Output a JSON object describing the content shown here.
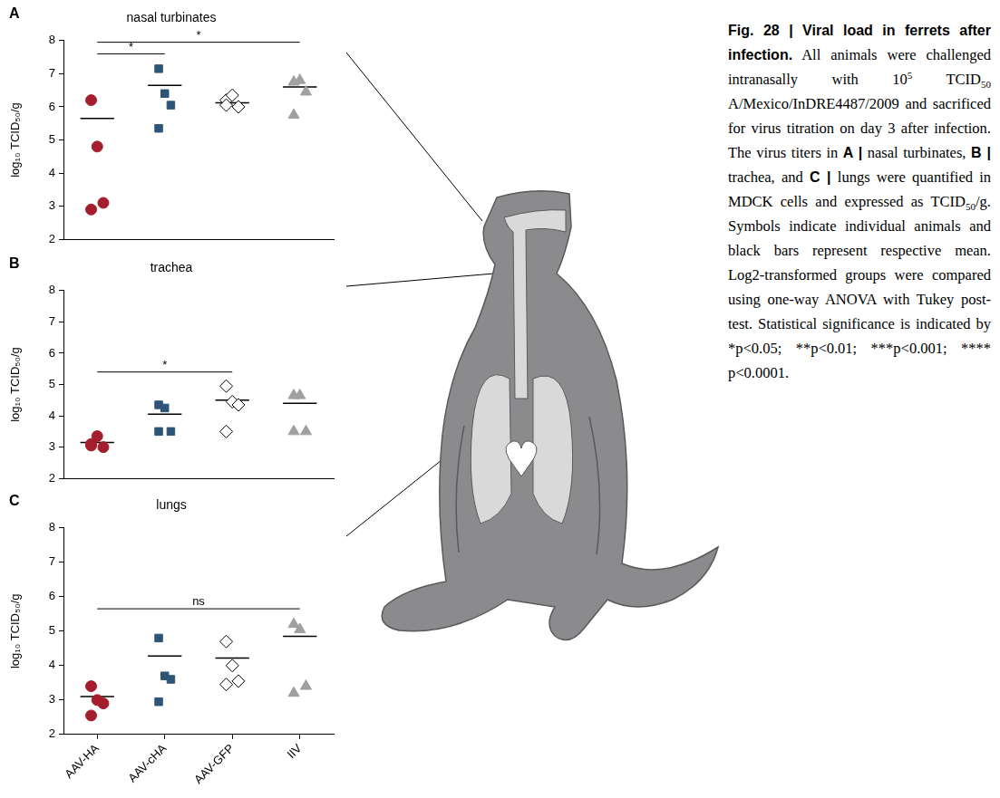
{
  "chart_data": [
    {
      "type": "scatter",
      "panel_label": "A",
      "title": "nasal turbinates",
      "y_label": "log₁₀ TCID₅₀/g",
      "categories": [
        "AAV-HA",
        "AAV-cHA",
        "AAV-GFP",
        "IIV"
      ],
      "series": [
        {
          "name": "AAV-HA",
          "color": "#a41e2d",
          "marker": "circle",
          "values": [
            6.2,
            4.8,
            3.1,
            2.9
          ],
          "mean": 5.65
        },
        {
          "name": "AAV-cHA",
          "color": "#2e5577",
          "marker": "square",
          "values": [
            7.15,
            6.4,
            6.05,
            5.35
          ],
          "mean": 6.65
        },
        {
          "name": "AAV-GFP",
          "color": "#ffffff",
          "marker": "diamond",
          "values": [
            6.2,
            6.35,
            6.0,
            6.05
          ],
          "mean": 6.12
        },
        {
          "name": "IIV",
          "color": "#a0a0a0",
          "marker": "triangle",
          "values": [
            6.75,
            6.8,
            6.45,
            5.75
          ],
          "mean": 6.6
        }
      ],
      "ylim": [
        2,
        8
      ],
      "yticks": [
        2,
        3,
        4,
        5,
        6,
        7,
        8
      ],
      "grid": false,
      "tick_labels": "y",
      "annotations": [
        {
          "from": "AAV-HA",
          "to": "AAV-cHA",
          "label": "*"
        },
        {
          "from": "AAV-HA",
          "to": "IIV",
          "label": "*"
        }
      ]
    },
    {
      "type": "scatter",
      "panel_label": "B",
      "title": "trachea",
      "y_label": "log₁₀ TCID₅₀/g",
      "categories": [
        "AAV-HA",
        "AAV-cHA",
        "AAV-GFP",
        "IIV"
      ],
      "series": [
        {
          "name": "AAV-HA",
          "color": "#a41e2d",
          "marker": "circle",
          "values": [
            3.1,
            3.35,
            3.0,
            3.05
          ],
          "mean": 3.15
        },
        {
          "name": "AAV-cHA",
          "color": "#2e5577",
          "marker": "square",
          "values": [
            4.35,
            4.25,
            3.5,
            3.5
          ],
          "mean": 4.05
        },
        {
          "name": "AAV-GFP",
          "color": "#ffffff",
          "marker": "diamond",
          "values": [
            4.95,
            4.45,
            4.35,
            3.5
          ],
          "mean": 4.5
        },
        {
          "name": "IIV",
          "color": "#a0a0a0",
          "marker": "triangle",
          "values": [
            4.65,
            4.65,
            3.5,
            3.5
          ],
          "mean": 4.4
        }
      ],
      "ylim": [
        2,
        8
      ],
      "yticks": [
        2,
        3,
        4,
        5,
        6,
        7,
        8
      ],
      "grid": false,
      "tick_labels": "y",
      "annotations": [
        {
          "from": "AAV-HA",
          "to": "AAV-GFP",
          "label": "*"
        }
      ]
    },
    {
      "type": "scatter",
      "panel_label": "C",
      "title": "lungs",
      "y_label": "log₁₀ TCID₅₀/g",
      "categories": [
        "AAV-HA",
        "AAV-cHA",
        "AAV-GFP",
        "IIV"
      ],
      "series": [
        {
          "name": "AAV-HA",
          "color": "#a41e2d",
          "marker": "circle",
          "values": [
            3.4,
            3.0,
            2.9,
            2.55
          ],
          "mean": 3.1
        },
        {
          "name": "AAV-cHA",
          "color": "#2e5577",
          "marker": "square",
          "values": [
            4.8,
            3.7,
            3.6,
            2.95
          ],
          "mean": 4.28
        },
        {
          "name": "AAV-GFP",
          "color": "#ffffff",
          "marker": "diamond",
          "values": [
            4.7,
            4.0,
            3.55,
            3.45
          ],
          "mean": 4.22
        },
        {
          "name": "IIV",
          "color": "#a0a0a0",
          "marker": "triangle",
          "values": [
            5.2,
            5.05,
            3.4,
            3.2
          ],
          "mean": 4.85
        }
      ],
      "ylim": [
        2,
        8
      ],
      "yticks": [
        2,
        3,
        4,
        5,
        6,
        7,
        8
      ],
      "grid": false,
      "annotations": [
        {
          "from": "AAV-HA",
          "to": "IIV",
          "label": "ns"
        }
      ]
    }
  ],
  "caption": [
    {
      "text": "Fig. 28 | Viral load in ferrets after infection.",
      "style": "bold"
    },
    {
      "text": " All animals were challenged intranasally with 10"
    },
    {
      "text": "5",
      "style": "sup"
    },
    {
      "text": " TCID"
    },
    {
      "text": "50",
      "style": "sub"
    },
    {
      "text": " A/Mexico/InDRE4487/2009 and sacrificed for virus titration on day 3 after infection. The virus titers in "
    },
    {
      "text": "A |",
      "style": "bold"
    },
    {
      "text": " nasal turbinates, "
    },
    {
      "text": "B |",
      "style": "bold"
    },
    {
      "text": " trachea, and "
    },
    {
      "text": "C |",
      "style": "bold"
    },
    {
      "text": " lungs were quantified in MDCK cells and expressed as TCID"
    },
    {
      "text": "50",
      "style": "sub"
    },
    {
      "text": "/g. Symbols indicate individual animals and black bars represent respective mean. Log2-transformed groups were compared using one-way ANOVA with Tukey post-test. Statistical significance is indicated by *p<0.05; **p<0.01; ***p<0.001; **** p<0.0001."
    }
  ]
}
